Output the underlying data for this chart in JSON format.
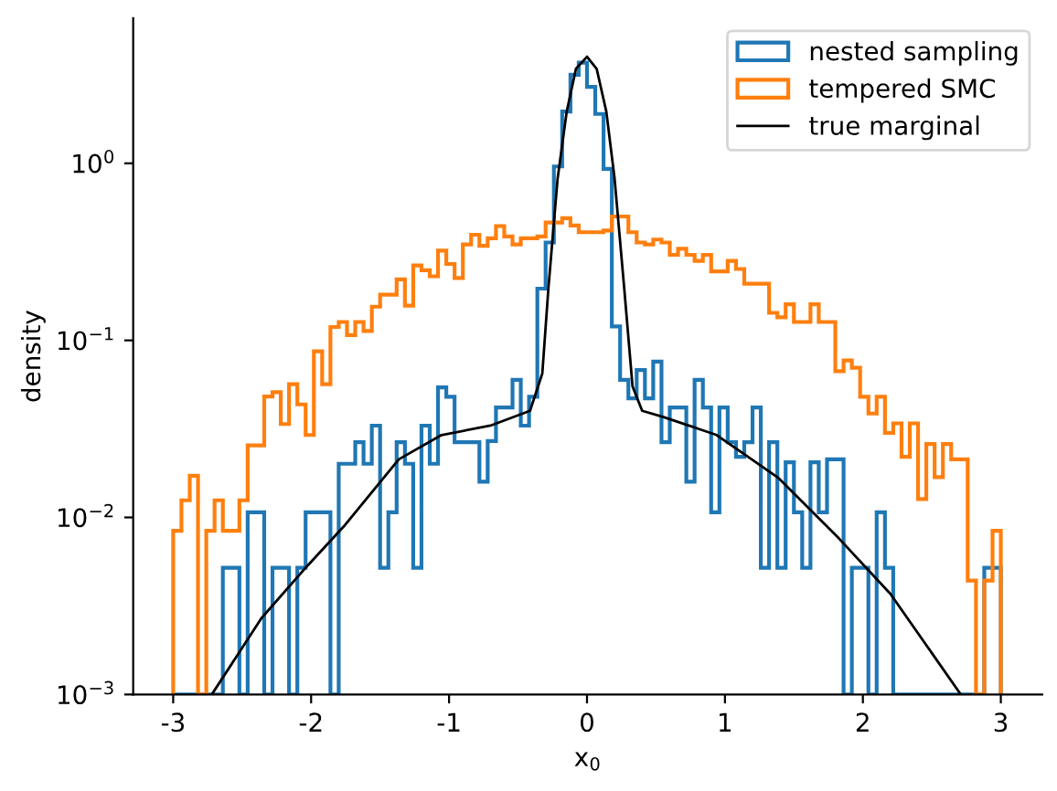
{
  "chart_data": {
    "type": "histogram",
    "xlabel": "x$_{0}$",
    "ylabel": "density",
    "log": "y",
    "bins": [
      -3.0,
      -2.94,
      -2.88,
      -2.82,
      -2.76,
      -2.7,
      -2.64,
      -2.58,
      -2.52,
      -2.46,
      -2.4,
      -2.34,
      -2.28,
      -2.22,
      -2.16,
      -2.1,
      -2.04,
      -1.98,
      -1.92,
      -1.86,
      -1.8,
      -1.74,
      -1.68,
      -1.62,
      -1.56,
      -1.5,
      -1.44,
      -1.38,
      -1.32,
      -1.26,
      -1.2,
      -1.14,
      -1.08,
      -1.02,
      -0.96,
      -0.9,
      -0.84,
      -0.78,
      -0.72,
      -0.66,
      -0.6,
      -0.54,
      -0.48,
      -0.42,
      -0.36,
      -0.3,
      -0.24,
      -0.18,
      -0.12,
      -0.06,
      0.0,
      0.06,
      0.12,
      0.18,
      0.24,
      0.3,
      0.36,
      0.42,
      0.48,
      0.54,
      0.6,
      0.66,
      0.72,
      0.78,
      0.84,
      0.9,
      0.96,
      1.02,
      1.08,
      1.14,
      1.2,
      1.26,
      1.32,
      1.38,
      1.44,
      1.5,
      1.56,
      1.62,
      1.68,
      1.74,
      1.8,
      1.86,
      1.92,
      1.98,
      2.04,
      2.1,
      2.16,
      2.22,
      2.28,
      2.34,
      2.4,
      2.46,
      2.52,
      2.58,
      2.64,
      2.7,
      2.76,
      2.82,
      2.88,
      2.94,
      3.0
    ],
    "series": [
      {
        "name": "nested sampling",
        "color": "#1f77b4",
        "values": [
          0.001,
          0.001,
          0.001,
          0.001,
          0.001,
          0.001,
          0.0052,
          0.0052,
          0.001,
          0.0107,
          0.0107,
          0.001,
          0.0052,
          0.0052,
          0.001,
          0.0052,
          0.0107,
          0.0107,
          0.0107,
          0.001,
          0.0201,
          0.0201,
          0.0266,
          0.0201,
          0.033,
          0.0052,
          0.0107,
          0.0266,
          0.0201,
          0.0052,
          0.033,
          0.0201,
          0.0543,
          0.048,
          0.0266,
          0.0266,
          0.0266,
          0.0159,
          0.027,
          0.0418,
          0.0418,
          0.0598,
          0.033,
          0.048,
          0.196,
          0.357,
          0.96,
          1.96,
          3.16,
          3.7,
          2.7,
          1.9,
          0.93,
          0.12,
          0.0598,
          0.047,
          0.068,
          0.047,
          0.0759,
          0.0266,
          0.0418,
          0.0418,
          0.0159,
          0.0598,
          0.0418,
          0.0107,
          0.0418,
          0.0266,
          0.022,
          0.0266,
          0.0418,
          0.0052,
          0.0266,
          0.0052,
          0.0205,
          0.0107,
          0.0052,
          0.0205,
          0.0107,
          0.0213,
          0.0213,
          0.001,
          0.0052,
          0.0052,
          0.001,
          0.0107,
          0.0052,
          0.001,
          0.001,
          0.001,
          0.001,
          0.001,
          0.001,
          0.001,
          0.001,
          0.001,
          0.001,
          0.001,
          0.0052,
          0.0052
        ]
      },
      {
        "name": "tempered SMC",
        "color": "#ff7f0e",
        "values": [
          0.0084,
          0.0125,
          0.0172,
          0.001,
          0.0084,
          0.0125,
          0.0084,
          0.0084,
          0.0125,
          0.0255,
          0.0255,
          0.0482,
          0.051,
          0.0337,
          0.0565,
          0.0435,
          0.0292,
          0.0867,
          0.0565,
          0.119,
          0.127,
          0.107,
          0.127,
          0.113,
          0.155,
          0.181,
          0.181,
          0.221,
          0.157,
          0.265,
          0.249,
          0.23,
          0.321,
          0.27,
          0.225,
          0.348,
          0.395,
          0.342,
          0.377,
          0.442,
          0.386,
          0.348,
          0.377,
          0.377,
          0.386,
          0.463,
          0.463,
          0.49,
          0.445,
          0.408,
          0.408,
          0.408,
          0.417,
          0.501,
          0.501,
          0.408,
          0.357,
          0.348,
          0.371,
          0.357,
          0.304,
          0.329,
          0.304,
          0.281,
          0.304,
          0.245,
          0.245,
          0.281,
          0.253,
          0.209,
          0.209,
          0.209,
          0.143,
          0.135,
          0.16,
          0.127,
          0.127,
          0.16,
          0.127,
          0.127,
          0.067,
          0.077,
          0.07,
          0.048,
          0.0386,
          0.048,
          0.03,
          0.034,
          0.022,
          0.034,
          0.0127,
          0.026,
          0.0169,
          0.026,
          0.0213,
          0.0213,
          0.0044,
          0.001,
          0.0044,
          0.0084
        ]
      },
      {
        "name": "true marginal",
        "color": "#000000",
        "type": "line",
        "x": [
          -2.72,
          -2.36,
          -2.03,
          -1.763,
          -1.364,
          -1.055,
          -0.7,
          -0.413,
          -0.324,
          -0.28,
          -0.213,
          -0.147,
          -0.08,
          0.0,
          0.07,
          0.14,
          0.2,
          0.27,
          0.33,
          0.4,
          0.55,
          0.94,
          1.384,
          1.827,
          2.2,
          2.71
        ],
        "values": [
          0.001,
          0.0027,
          0.0053,
          0.0089,
          0.0213,
          0.0292,
          0.033,
          0.04,
          0.065,
          0.196,
          0.82,
          1.96,
          3.42,
          4.0,
          3.42,
          1.96,
          0.82,
          0.196,
          0.055,
          0.04,
          0.037,
          0.0292,
          0.0168,
          0.0076,
          0.0037,
          0.001
        ]
      }
    ],
    "xlim": [
      -3.29,
      3.3
    ],
    "ylim": [
      0.001,
      6.6
    ],
    "xticks": [
      -3,
      -2,
      -1,
      0,
      1,
      2,
      3
    ],
    "yticks": [
      {
        "value": 0.001,
        "label": "10$^{−3}$"
      },
      {
        "value": 0.01,
        "label": "10$^{−2}$"
      },
      {
        "value": 0.1,
        "label": "10$^{−1}$"
      },
      {
        "value": 1,
        "label": "10$^{0}$"
      }
    ],
    "legend": "top right",
    "grid": false
  }
}
